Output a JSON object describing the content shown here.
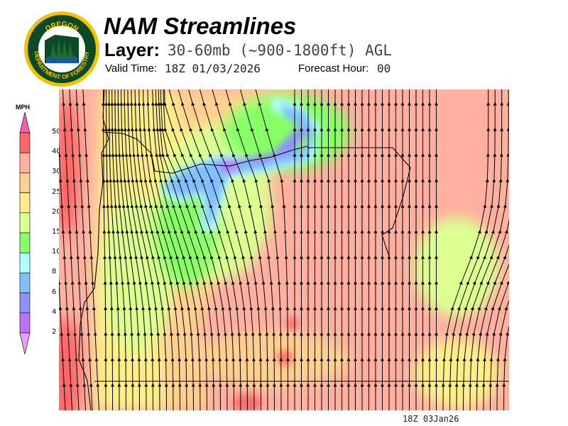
{
  "header": {
    "logo_text": [
      "OREGON",
      "DEPARTMENT OF FORESTRY"
    ],
    "title": "NAM Streamlines",
    "layer_label": "Layer:",
    "layer_value": "30-60mb (~900-1800ft) AGL",
    "valid_time_label": "Valid Time:",
    "valid_time_value": "18Z 01/03/2026",
    "forecast_hour_label": "Forecast Hour:",
    "forecast_hour_value": "00"
  },
  "legend": {
    "units": "MPH",
    "ticks": [
      "50",
      "40",
      "30",
      "25",
      "20",
      "15",
      "10",
      "8",
      "6",
      "4",
      "2"
    ],
    "colors": {
      "above_50": "#f060b0",
      "40_50": "#ff6666",
      "30_40": "#ffb0a0",
      "25_30": "#ffd090",
      "20_25": "#ffee88",
      "15_20": "#dcff90",
      "10_15": "#88ff66",
      "8_10": "#b0ffff",
      "6_8": "#80c0ff",
      "4_6": "#9090ff",
      "2_4": "#c070ff",
      "below_2": "#e8a0f8"
    }
  },
  "footer": {
    "timestamp": "18Z 03Jan26"
  }
}
